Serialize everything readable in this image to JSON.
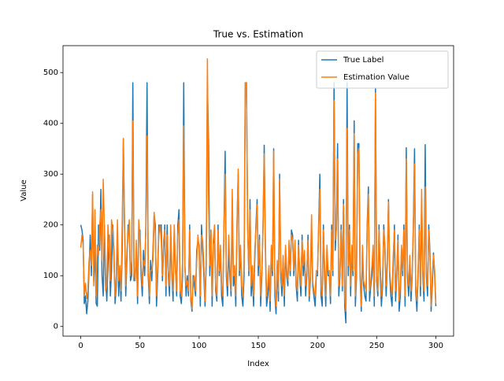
{
  "chart_data": {
    "type": "line",
    "title": "True vs. Estimation",
    "x_label": "Index",
    "y_label": "Value",
    "x": [
      0,
      1,
      2,
      3,
      4,
      5,
      6,
      7,
      8,
      9,
      10,
      11,
      12,
      13,
      14,
      15,
      16,
      17,
      18,
      19,
      20,
      21,
      22,
      23,
      24,
      25,
      26,
      27,
      28,
      29,
      30,
      31,
      32,
      33,
      34,
      35,
      36,
      37,
      38,
      39,
      40,
      41,
      42,
      43,
      44,
      45,
      46,
      47,
      48,
      49,
      50,
      51,
      52,
      53,
      54,
      55,
      56,
      57,
      58,
      59,
      60,
      61,
      62,
      63,
      64,
      65,
      66,
      67,
      68,
      69,
      70,
      71,
      72,
      73,
      74,
      75,
      76,
      77,
      78,
      79,
      80,
      81,
      82,
      83,
      84,
      85,
      86,
      87,
      88,
      89,
      90,
      91,
      92,
      93,
      94,
      95,
      96,
      97,
      98,
      99,
      100,
      101,
      102,
      103,
      104,
      105,
      106,
      107,
      108,
      109,
      110,
      111,
      112,
      113,
      114,
      115,
      116,
      117,
      118,
      119,
      120,
      121,
      122,
      123,
      124,
      125,
      126,
      127,
      128,
      129,
      130,
      131,
      132,
      133,
      134,
      135,
      136,
      137,
      138,
      139,
      140,
      141,
      142,
      143,
      144,
      145,
      146,
      147,
      148,
      149,
      150,
      151,
      152,
      153,
      154,
      155,
      156,
      157,
      158,
      159,
      160,
      161,
      162,
      163,
      164,
      165,
      166,
      167,
      168,
      169,
      170,
      171,
      172,
      173,
      174,
      175,
      176,
      177,
      178,
      179,
      180,
      181,
      182,
      183,
      184,
      185,
      186,
      187,
      188,
      189,
      190,
      191,
      192,
      193,
      194,
      195,
      196,
      197,
      198,
      199,
      200,
      201,
      202,
      203,
      204,
      205,
      206,
      207,
      208,
      209,
      210,
      211,
      212,
      213,
      214,
      215,
      216,
      217,
      218,
      219,
      220,
      221,
      222,
      223,
      224,
      225,
      226,
      227,
      228,
      229,
      230,
      231,
      232,
      233,
      234,
      235,
      236,
      237,
      238,
      239,
      240,
      241,
      242,
      243,
      244,
      245,
      246,
      247,
      248,
      249,
      250,
      251,
      252,
      253,
      254,
      255,
      256,
      257,
      258,
      259,
      260,
      261,
      262,
      263,
      264,
      265,
      266,
      267,
      268,
      269,
      270,
      271,
      272,
      273,
      274,
      275,
      276,
      277,
      278,
      279,
      280,
      281,
      282,
      283,
      284,
      285,
      286,
      287,
      288,
      289,
      290,
      291,
      292,
      293,
      294,
      295,
      296,
      297,
      298,
      299,
      300
    ],
    "series": [
      {
        "name": "True Label",
        "color": "#1f77b4",
        "values": [
          200,
          190,
          170,
          45,
          60,
          25,
          50,
          110,
          180,
          100,
          260,
          90,
          150,
          45,
          40,
          200,
          150,
          270,
          100,
          60,
          200,
          100,
          50,
          120,
          180,
          60,
          110,
          200,
          150,
          45,
          80,
          190,
          60,
          110,
          50,
          150,
          370,
          200,
          60,
          130,
          200,
          190,
          90,
          100,
          480,
          90,
          100,
          150,
          45,
          190,
          190,
          100,
          60,
          150,
          100,
          200,
          480,
          100,
          45,
          130,
          90,
          150,
          220,
          200,
          40,
          100,
          200,
          190,
          200,
          90,
          150,
          200,
          60,
          200,
          100,
          60,
          180,
          100,
          50,
          190,
          120,
          60,
          200,
          230,
          60,
          45,
          100,
          480,
          120,
          60,
          100,
          60,
          200,
          50,
          30,
          100,
          80,
          60,
          150,
          170,
          160,
          40,
          200,
          150,
          100,
          40,
          120,
          480,
          360,
          100,
          190,
          40,
          160,
          190,
          70,
          50,
          200,
          100,
          150,
          60,
          40,
          200,
          345,
          100,
          60,
          150,
          100,
          60,
          250,
          80,
          100,
          40,
          200,
          300,
          100,
          150,
          60,
          40,
          100,
          480,
          480,
          200,
          100,
          250,
          60,
          100,
          40,
          130,
          200,
          250,
          100,
          180,
          40,
          100,
          200,
          357,
          150,
          40,
          60,
          100,
          30,
          150,
          100,
          350,
          60,
          25,
          120,
          50,
          300,
          100,
          60,
          130,
          40,
          150,
          100,
          80,
          160,
          100,
          190,
          180,
          100,
          160,
          80,
          50,
          170,
          100,
          60,
          180,
          100,
          140,
          60,
          100,
          180,
          50,
          90,
          200,
          80,
          60,
          40,
          100,
          100,
          200,
          300,
          60,
          40,
          200,
          100,
          40,
          150,
          100,
          100,
          45,
          200,
          100,
          480,
          150,
          200,
          360,
          60,
          100,
          200,
          70,
          250,
          40,
          7,
          480,
          100,
          200,
          60,
          150,
          100,
          405,
          40,
          100,
          360,
          360,
          100,
          30,
          150,
          80,
          60,
          50,
          200,
          275,
          50,
          80,
          100,
          150,
          40,
          470,
          90,
          60,
          200,
          100,
          40,
          80,
          200,
          150,
          60,
          120,
          250,
          100,
          60,
          40,
          120,
          200,
          50,
          100,
          180,
          30,
          60,
          150,
          100,
          200,
          40,
          352,
          100,
          60,
          130,
          50,
          100,
          200,
          350,
          70,
          30,
          100,
          200,
          60,
          250,
          100,
          50,
          358,
          100,
          60,
          200,
          150,
          30,
          80,
          145,
          100,
          40
        ]
      },
      {
        "name": "Estimation Value",
        "color": "#ff7f0e",
        "values": [
          155,
          180,
          160,
          60,
          85,
          55,
          70,
          130,
          150,
          120,
          265,
          80,
          230,
          60,
          160,
          140,
          200,
          230,
          130,
          290,
          190,
          70,
          80,
          200,
          150,
          90,
          210,
          190,
          130,
          60,
          100,
          210,
          90,
          120,
          70,
          200,
          370,
          190,
          80,
          150,
          180,
          210,
          100,
          130,
          405,
          110,
          90,
          170,
          60,
          210,
          170,
          120,
          80,
          130,
          120,
          190,
          375,
          120,
          60,
          110,
          110,
          130,
          225,
          180,
          60,
          120,
          180,
          200,
          170,
          100,
          170,
          190,
          80,
          180,
          110,
          80,
          200,
          110,
          70,
          200,
          110,
          70,
          180,
          210,
          70,
          60,
          130,
          395,
          110,
          80,
          90,
          70,
          190,
          60,
          35,
          90,
          100,
          70,
          130,
          180,
          150,
          60,
          180,
          170,
          120,
          50,
          140,
          527,
          240,
          120,
          190,
          60,
          170,
          200,
          80,
          60,
          190,
          110,
          160,
          80,
          60,
          190,
          300,
          110,
          80,
          180,
          120,
          70,
          270,
          100,
          120,
          60,
          190,
          310,
          110,
          160,
          80,
          60,
          130,
          480,
          480,
          190,
          110,
          230,
          80,
          120,
          60,
          150,
          190,
          240,
          120,
          170,
          60,
          110,
          190,
          340,
          160,
          60,
          80,
          120,
          50,
          160,
          110,
          345,
          80,
          40,
          130,
          70,
          290,
          120,
          80,
          140,
          60,
          160,
          110,
          90,
          170,
          110,
          180,
          170,
          110,
          170,
          90,
          70,
          160,
          110,
          80,
          170,
          120,
          150,
          80,
          110,
          170,
          60,
          100,
          220,
          90,
          70,
          60,
          110,
          110,
          190,
          270,
          80,
          60,
          190,
          120,
          60,
          160,
          110,
          110,
          60,
          190,
          110,
          445,
          170,
          190,
          330,
          80,
          110,
          190,
          80,
          240,
          60,
          30,
          390,
          120,
          190,
          80,
          160,
          110,
          380,
          60,
          110,
          340,
          350,
          110,
          40,
          160,
          90,
          80,
          70,
          190,
          260,
          70,
          90,
          120,
          160,
          60,
          460,
          100,
          70,
          190,
          120,
          60,
          100,
          190,
          160,
          80,
          130,
          245,
          110,
          80,
          60,
          140,
          190,
          70,
          110,
          170,
          50,
          80,
          160,
          110,
          190,
          60,
          330,
          110,
          80,
          140,
          70,
          110,
          190,
          320,
          80,
          50,
          110,
          190,
          80,
          270,
          110,
          70,
          275,
          110,
          80,
          190,
          140,
          40,
          100,
          140,
          110,
          45
        ]
      }
    ],
    "xlim": [
      -15,
      315
    ],
    "xticks": [
      0,
      50,
      100,
      150,
      200,
      250,
      300
    ],
    "ylim": [
      -19,
      553
    ],
    "yticks": [
      0,
      100,
      200,
      300,
      400,
      500
    ],
    "legend": "upper right"
  }
}
